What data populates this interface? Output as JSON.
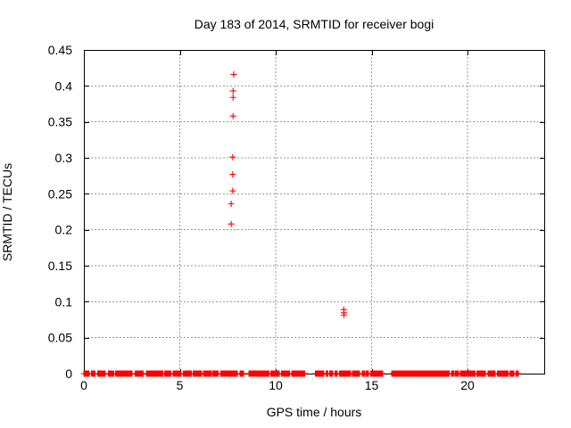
{
  "colors": {
    "marker": "#ff0000",
    "grid": "#9a9a9a",
    "border": "#000000",
    "text": "#000000",
    "background": "#ffffff"
  },
  "chart_data": {
    "type": "scatter",
    "title": "Day 183 of 2014, SRMTID for receiver bogi",
    "xlabel": "GPS time / hours",
    "ylabel": "SRMTID / TECUs",
    "xlim": [
      0,
      24
    ],
    "ylim": [
      0,
      0.45
    ],
    "grid": true,
    "legend": "none",
    "xticks": [
      {
        "value": 0,
        "label": "0"
      },
      {
        "value": 5,
        "label": "5"
      },
      {
        "value": 10,
        "label": "10"
      },
      {
        "value": 15,
        "label": "15"
      },
      {
        "value": 20,
        "label": "20"
      }
    ],
    "yticks": [
      {
        "value": 0,
        "label": "0"
      },
      {
        "value": 0.05,
        "label": "0.05"
      },
      {
        "value": 0.1,
        "label": "0.1"
      },
      {
        "value": 0.15,
        "label": "0.15"
      },
      {
        "value": 0.2,
        "label": "0.2"
      },
      {
        "value": 0.25,
        "label": "0.25"
      },
      {
        "value": 0.3,
        "label": "0.3"
      },
      {
        "value": 0.35,
        "label": "0.35"
      },
      {
        "value": 0.4,
        "label": "0.4"
      },
      {
        "value": 0.45,
        "label": "0.45"
      }
    ],
    "series": [
      {
        "name": "SRMTID",
        "marker": "plus",
        "color": "#ff0000",
        "points": [
          [
            7.81,
            0.416
          ],
          [
            7.78,
            0.393
          ],
          [
            7.78,
            0.384
          ],
          [
            7.78,
            0.358
          ],
          [
            7.76,
            0.301
          ],
          [
            7.76,
            0.277
          ],
          [
            7.76,
            0.254
          ],
          [
            7.68,
            0.236
          ],
          [
            7.68,
            0.208
          ],
          [
            13.55,
            0.089
          ],
          [
            13.56,
            0.0845
          ],
          [
            13.56,
            0.0815
          ]
        ],
        "baseline_value": 0,
        "baseline_segments": [
          [
            0.0,
            0.28
          ],
          [
            0.4,
            0.57
          ],
          [
            0.73,
            1.12
          ],
          [
            1.27,
            1.55
          ],
          [
            1.66,
            2.51
          ],
          [
            2.67,
            3.1
          ],
          [
            3.26,
            4.11
          ],
          [
            4.22,
            4.53
          ],
          [
            4.65,
            5.07
          ],
          [
            5.18,
            5.61
          ],
          [
            5.69,
            6.15
          ],
          [
            6.23,
            6.65
          ],
          [
            6.73,
            7.01
          ],
          [
            7.13,
            8.01
          ],
          [
            8.14,
            8.33
          ],
          [
            8.6,
            9.64
          ],
          [
            9.75,
            10.19
          ],
          [
            10.31,
            10.73
          ],
          [
            10.84,
            11.5
          ],
          [
            12.06,
            12.51
          ],
          [
            12.62,
            12.71
          ],
          [
            12.82,
            12.98
          ],
          [
            13.1,
            13.21
          ],
          [
            13.32,
            13.91
          ],
          [
            13.99,
            14.37
          ],
          [
            14.5,
            14.65
          ],
          [
            14.73,
            14.84
          ],
          [
            14.96,
            15.58
          ],
          [
            16.05,
            19.04
          ],
          [
            19.16,
            19.27
          ],
          [
            19.35,
            19.53
          ],
          [
            19.63,
            20.4
          ],
          [
            20.48,
            20.93
          ],
          [
            21.06,
            21.44
          ],
          [
            21.55,
            22.11
          ],
          [
            22.22,
            22.42
          ],
          [
            22.53,
            22.64
          ]
        ]
      }
    ]
  }
}
